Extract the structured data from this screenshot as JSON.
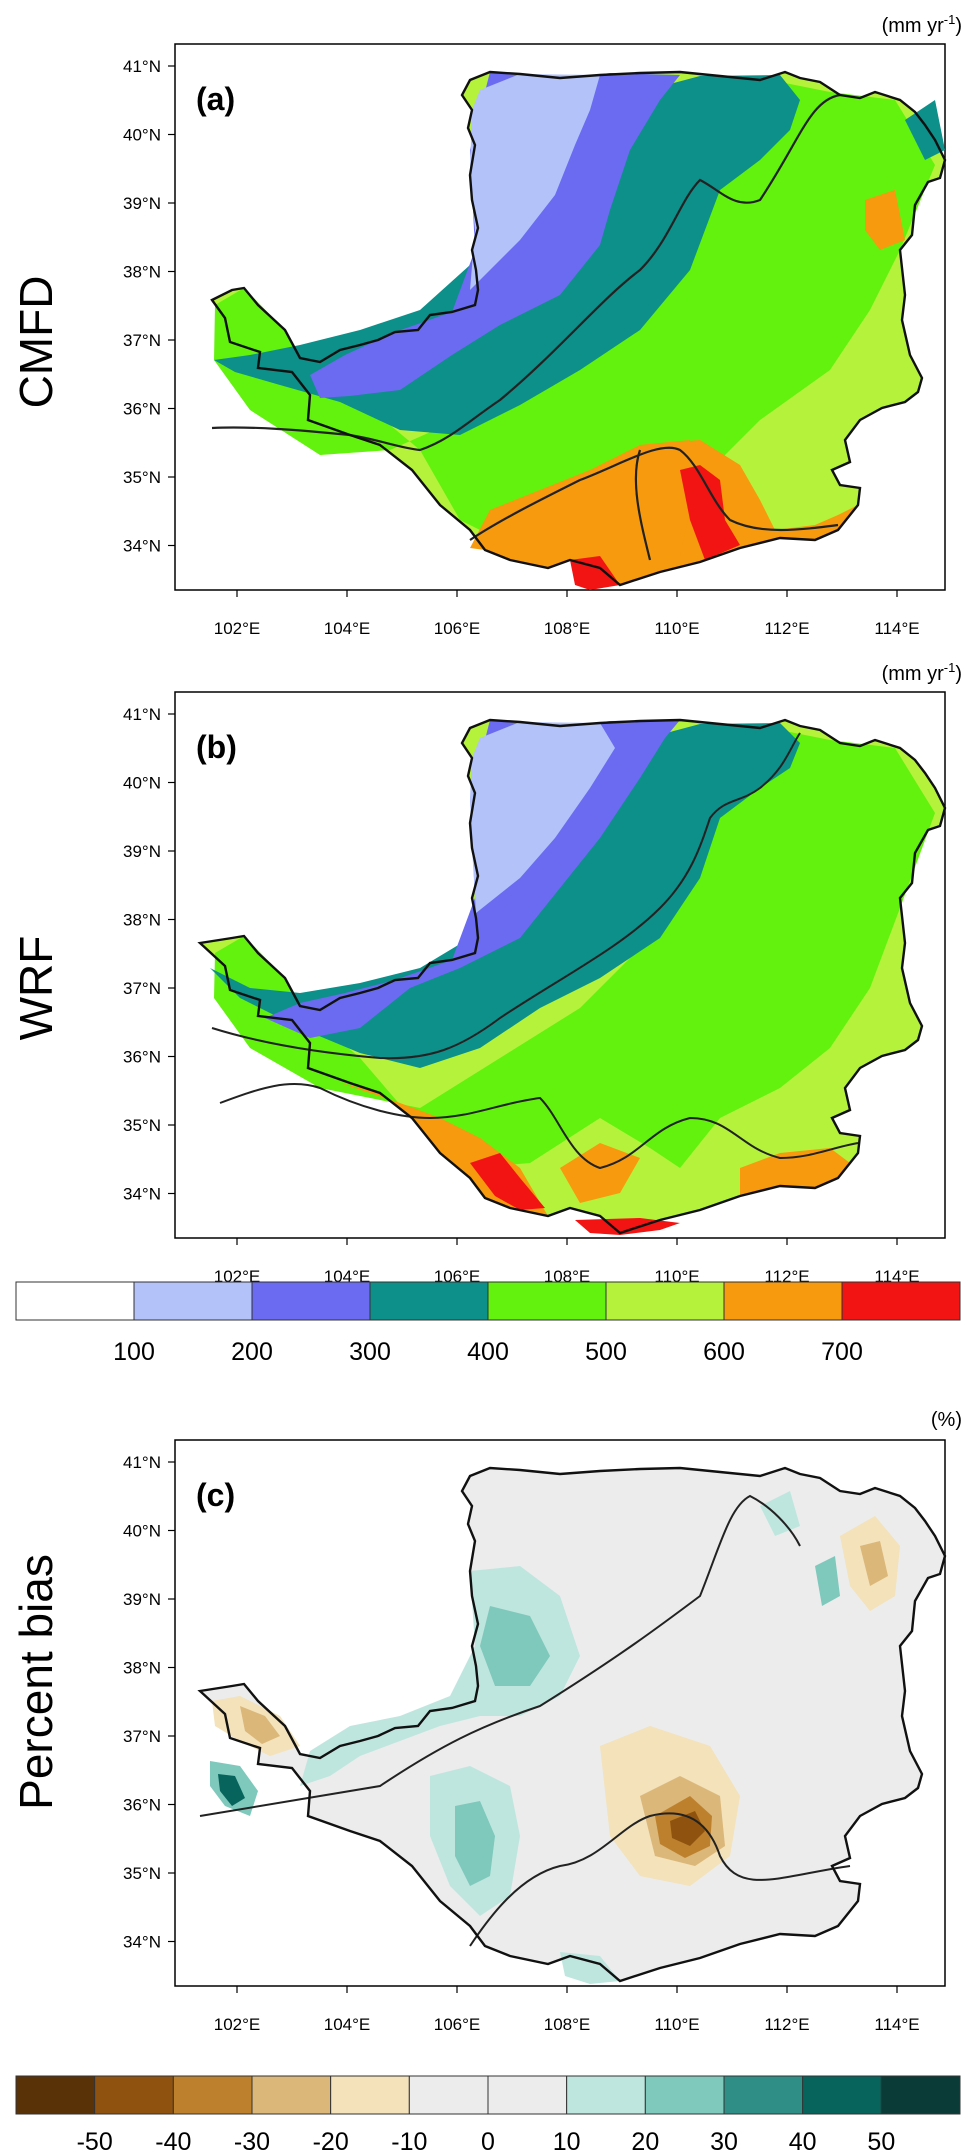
{
  "chart_data": [
    {
      "type": "heatmap",
      "panel_label": "(a)",
      "row_label": "CMFD",
      "units": "(mm yr",
      "units_superscript": "-1",
      "units_close": ")",
      "x_ticks": [
        "102°E",
        "104°E",
        "106°E",
        "108°E",
        "110°E",
        "112°E",
        "114°E"
      ],
      "y_ticks": [
        "41°N",
        "40°N",
        "39°N",
        "38°N",
        "37°N",
        "36°N",
        "35°N",
        "34°N"
      ],
      "xlim": [
        100.8,
        114.2
      ],
      "ylim": [
        33.45,
        41.05
      ],
      "contour_levels": [
        400,
        600
      ],
      "zones": [
        {
          "value": 150,
          "color": "#b3c2f8"
        },
        {
          "value": 250,
          "color": "#6a6bf0"
        },
        {
          "value": 350,
          "color": "#0d8f8a"
        },
        {
          "value": 450,
          "color": "#62f20d"
        },
        {
          "value": 550,
          "color": "#b5f23b"
        },
        {
          "value": 650,
          "color": "#f79a0d"
        },
        {
          "value": 750,
          "color": "#f21313"
        }
      ]
    },
    {
      "type": "heatmap",
      "panel_label": "(b)",
      "row_label": "WRF",
      "units": "(mm yr",
      "units_superscript": "-1",
      "units_close": ")",
      "x_ticks": [
        "102°E",
        "104°E",
        "106°E",
        "108°E",
        "110°E",
        "112°E",
        "114°E"
      ],
      "y_ticks": [
        "41°N",
        "40°N",
        "39°N",
        "38°N",
        "37°N",
        "36°N",
        "35°N",
        "34°N"
      ],
      "xlim": [
        100.8,
        114.2
      ],
      "ylim": [
        33.45,
        41.05
      ],
      "contour_levels": [
        400,
        600
      ]
    },
    {
      "type": "heatmap",
      "panel_label": "(c)",
      "row_label": "Percent bias",
      "units": "(%)",
      "x_ticks": [
        "102°E",
        "104°E",
        "106°E",
        "108°E",
        "110°E",
        "112°E",
        "114°E"
      ],
      "y_ticks": [
        "41°N",
        "40°N",
        "39°N",
        "38°N",
        "37°N",
        "36°N",
        "35°N",
        "34°N"
      ],
      "xlim": [
        100.8,
        114.2
      ],
      "ylim": [
        33.45,
        41.05
      ]
    }
  ],
  "precip_colorbar": {
    "labels": [
      "100",
      "200",
      "300",
      "400",
      "500",
      "600",
      "700"
    ],
    "colors": [
      "#ffffff",
      "#b3c2f8",
      "#6a6bf0",
      "#0d8f8a",
      "#62f20d",
      "#b5f23b",
      "#f79a0d",
      "#f21313"
    ]
  },
  "bias_colorbar": {
    "labels": [
      "-50",
      "-40",
      "-30",
      "-20",
      "-10",
      "0",
      "10",
      "20",
      "30",
      "40",
      "50"
    ],
    "colors": [
      "#5a3208",
      "#8f530f",
      "#bd812e",
      "#dbb779",
      "#f3e2ba",
      "#ececec",
      "#ececec",
      "#bfe6de",
      "#7fc8bc",
      "#2f8f86",
      "#07645c",
      "#0b3b37"
    ]
  }
}
